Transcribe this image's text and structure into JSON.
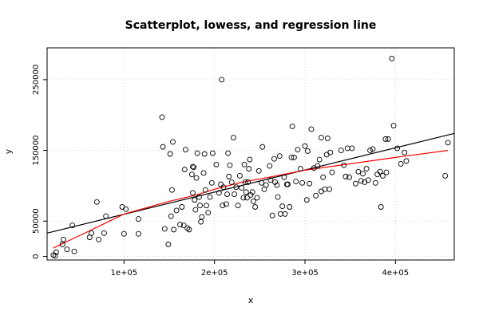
{
  "chart_data": {
    "type": "scatter",
    "title": "Scatterplot, lowess, and regression line",
    "xlabel": "x",
    "ylabel": "y",
    "xlim": [
      15000,
      465000
    ],
    "ylim": [
      -5000,
      295000
    ],
    "x_ticks": [
      100000,
      200000,
      300000,
      400000
    ],
    "x_tick_labels": [
      "1e+05",
      "2e+05",
      "3e+05",
      "4e+05"
    ],
    "y_ticks": [
      0,
      50000,
      150000,
      250000
    ],
    "y_tick_labels": [
      "0",
      "50000",
      "150000",
      "250000"
    ],
    "grid": true,
    "colors": {
      "points": "#000000",
      "regression": "#000000",
      "lowess": "#ff0000",
      "grid": "#d3d3d3"
    },
    "points": [
      [
        22000,
        2000
      ],
      [
        24000,
        1000
      ],
      [
        25000,
        6000
      ],
      [
        32000,
        17000
      ],
      [
        33000,
        24000
      ],
      [
        37000,
        10000
      ],
      [
        43000,
        44000
      ],
      [
        45000,
        7000
      ],
      [
        62000,
        27000
      ],
      [
        64000,
        33000
      ],
      [
        70000,
        77000
      ],
      [
        72000,
        24000
      ],
      [
        78000,
        33000
      ],
      [
        80000,
        57000
      ],
      [
        98000,
        70000
      ],
      [
        100000,
        32000
      ],
      [
        102000,
        67000
      ],
      [
        116000,
        53000
      ],
      [
        116000,
        32000
      ],
      [
        142000,
        197000
      ],
      [
        143000,
        155000
      ],
      [
        145000,
        39000
      ],
      [
        149000,
        17000
      ],
      [
        151000,
        145000
      ],
      [
        152000,
        57000
      ],
      [
        153000,
        94000
      ],
      [
        154000,
        162000
      ],
      [
        155000,
        38000
      ],
      [
        158000,
        65000
      ],
      [
        162000,
        45000
      ],
      [
        164000,
        70000
      ],
      [
        166000,
        44000
      ],
      [
        167000,
        123000
      ],
      [
        168000,
        151000
      ],
      [
        170000,
        40000
      ],
      [
        172000,
        38000
      ],
      [
        175000,
        116000
      ],
      [
        176000,
        127000
      ],
      [
        176000,
        90000
      ],
      [
        177000,
        126000
      ],
      [
        178000,
        80000
      ],
      [
        179000,
        66000
      ],
      [
        180000,
        111000
      ],
      [
        181000,
        146000
      ],
      [
        183000,
        84000
      ],
      [
        184000,
        72000
      ],
      [
        185000,
        49000
      ],
      [
        186000,
        56000
      ],
      [
        188000,
        118000
      ],
      [
        189000,
        145000
      ],
      [
        190000,
        94000
      ],
      [
        191000,
        72000
      ],
      [
        193000,
        62000
      ],
      [
        195000,
        84000
      ],
      [
        197000,
        104000
      ],
      [
        198000,
        146000
      ],
      [
        202000,
        130000
      ],
      [
        205000,
        90000
      ],
      [
        207000,
        102000
      ],
      [
        208000,
        250000
      ],
      [
        209000,
        72000
      ],
      [
        210000,
        98000
      ],
      [
        213000,
        74000
      ],
      [
        214000,
        88000
      ],
      [
        215000,
        146000
      ],
      [
        216000,
        113000
      ],
      [
        217000,
        129000
      ],
      [
        219000,
        105000
      ],
      [
        221000,
        168000
      ],
      [
        222000,
        88000
      ],
      [
        224000,
        98000
      ],
      [
        226000,
        72000
      ],
      [
        228000,
        114000
      ],
      [
        230000,
        97000
      ],
      [
        232000,
        83000
      ],
      [
        233000,
        130000
      ],
      [
        234000,
        105000
      ],
      [
        235000,
        91000
      ],
      [
        236000,
        83000
      ],
      [
        237000,
        105000
      ],
      [
        238000,
        124000
      ],
      [
        239000,
        137000
      ],
      [
        240000,
        87000
      ],
      [
        242000,
        91000
      ],
      [
        243000,
        78000
      ],
      [
        245000,
        70000
      ],
      [
        247000,
        83000
      ],
      [
        249000,
        121000
      ],
      [
        252000,
        104000
      ],
      [
        253000,
        155000
      ],
      [
        255000,
        95000
      ],
      [
        257000,
        101000
      ],
      [
        261000,
        128000
      ],
      [
        262000,
        108000
      ],
      [
        264000,
        58000
      ],
      [
        266000,
        138000
      ],
      [
        267000,
        105000
      ],
      [
        269000,
        101000
      ],
      [
        270000,
        84000
      ],
      [
        272000,
        142000
      ],
      [
        273000,
        60000
      ],
      [
        275000,
        71000
      ],
      [
        277000,
        112000
      ],
      [
        278000,
        60000
      ],
      [
        280000,
        102000
      ],
      [
        281000,
        102000
      ],
      [
        283000,
        70000
      ],
      [
        285000,
        140000
      ],
      [
        286000,
        184000
      ],
      [
        288000,
        140000
      ],
      [
        290000,
        106000
      ],
      [
        292000,
        151000
      ],
      [
        295000,
        124000
      ],
      [
        297000,
        104000
      ],
      [
        300000,
        156000
      ],
      [
        302000,
        80000
      ],
      [
        303000,
        149000
      ],
      [
        305000,
        103000
      ],
      [
        307000,
        180000
      ],
      [
        310000,
        125000
      ],
      [
        312000,
        86000
      ],
      [
        314000,
        128000
      ],
      [
        316000,
        137000
      ],
      [
        318000,
        92000
      ],
      [
        318000,
        168000
      ],
      [
        320000,
        112000
      ],
      [
        322000,
        95000
      ],
      [
        324000,
        144000
      ],
      [
        325000,
        167000
      ],
      [
        327000,
        95000
      ],
      [
        328000,
        147000
      ],
      [
        330000,
        119000
      ],
      [
        340000,
        150000
      ],
      [
        343000,
        129000
      ],
      [
        345000,
        113000
      ],
      [
        347000,
        153000
      ],
      [
        349000,
        112000
      ],
      [
        352000,
        153000
      ],
      [
        356000,
        103000
      ],
      [
        359000,
        120000
      ],
      [
        362000,
        107000
      ],
      [
        364000,
        117000
      ],
      [
        366000,
        105000
      ],
      [
        368000,
        124000
      ],
      [
        370000,
        108000
      ],
      [
        372000,
        150000
      ],
      [
        375000,
        152000
      ],
      [
        378000,
        104000
      ],
      [
        380000,
        116000
      ],
      [
        383000,
        120000
      ],
      [
        384000,
        70000
      ],
      [
        386000,
        114000
      ],
      [
        389000,
        166000
      ],
      [
        390000,
        119000
      ],
      [
        392000,
        166000
      ],
      [
        396000,
        280000
      ],
      [
        398000,
        185000
      ],
      [
        402000,
        153000
      ],
      [
        406000,
        131000
      ],
      [
        410000,
        147000
      ],
      [
        412000,
        135000
      ],
      [
        455000,
        114000
      ],
      [
        458000,
        161000
      ]
    ],
    "regression_line": {
      "x": [
        15000,
        465000
      ],
      "y": [
        33000,
        174000
      ]
    },
    "lowess_line": {
      "x": [
        22000,
        60000,
        100000,
        150000,
        180000,
        200000,
        230000,
        260000,
        300000,
        350000,
        400000,
        458000
      ],
      "y": [
        12000,
        35000,
        60000,
        78000,
        87000,
        95000,
        105000,
        112000,
        122000,
        131000,
        140000,
        150000
      ]
    }
  }
}
